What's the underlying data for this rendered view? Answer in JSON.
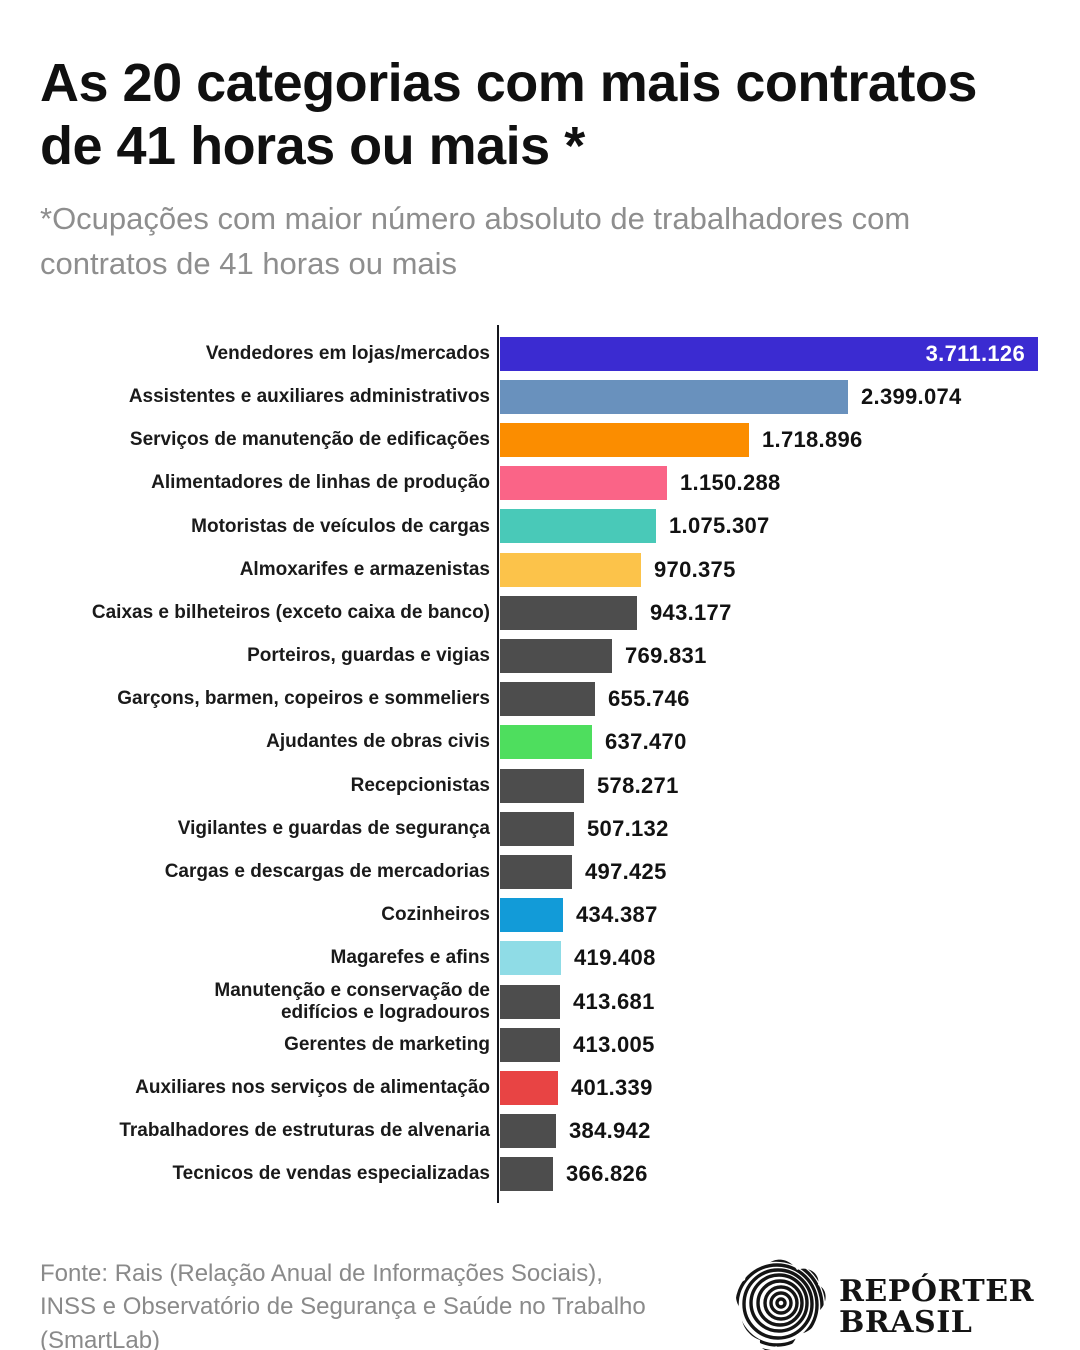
{
  "header": {
    "title": "As 20 categorias com mais contratos de 41 horas ou mais *",
    "subtitle": "*Ocupações com maior número absoluto de trabalhadores com contratos de 41 horas ou mais"
  },
  "chart_data": {
    "type": "bar",
    "orientation": "horizontal",
    "title": "As 20 categorias com mais contratos de 41 horas ou mais *",
    "xlabel": "",
    "ylabel": "",
    "xlim": [
      0,
      3711126
    ],
    "grid": false,
    "legend": false,
    "axis_color": "#15171d",
    "categories": [
      "Vendedores em lojas/mercados",
      "Assistentes e auxiliares administrativos",
      "Serviços de manutenção de edificações",
      "Alimentadores de linhas de produção",
      "Motoristas de veículos de cargas",
      "Almoxarifes e armazenistas",
      "Caixas e bilheteiros (exceto caixa de banco)",
      "Porteiros, guardas e vigias",
      "Garçons, barmen, copeiros e sommeliers",
      "Ajudantes de obras civis",
      "Recepcionistas",
      "Vigilantes e guardas de segurança",
      "Cargas e descargas de mercadorias",
      "Cozinheiros",
      "Magarefes e afins",
      "Manutenção e conservação de\nedifícios e logradouros",
      "Gerentes de marketing",
      "Auxiliares nos serviços de alimentação",
      "Trabalhadores de estruturas de alvenaria",
      "Tecnicos de vendas especializadas"
    ],
    "values": [
      3711126,
      2399074,
      1718896,
      1150288,
      1075307,
      970375,
      943177,
      769831,
      655746,
      637470,
      578271,
      507132,
      497425,
      434387,
      419408,
      413681,
      413005,
      401339,
      384942,
      366826
    ],
    "value_labels": [
      "3.711.126",
      "2.399.074",
      "1.718.896",
      "1.150.288",
      "1.075.307",
      "970.375",
      "943.177",
      "769.831",
      "655.746",
      "637.470",
      "578.271",
      "507.132",
      "497.425",
      "434.387",
      "419.408",
      "413.681",
      "413.005",
      "401.339",
      "384.942",
      "366.826"
    ],
    "bar_colors": [
      "#3b2bd1",
      "#6991bd",
      "#fb8d00",
      "#fa6487",
      "#49c9b8",
      "#fcc34a",
      "#4d4d4d",
      "#4d4d4d",
      "#4d4d4d",
      "#4ede5e",
      "#4d4d4d",
      "#4d4d4d",
      "#4d4d4d",
      "#129bd8",
      "#8fdce6",
      "#4d4d4d",
      "#4d4d4d",
      "#e84444",
      "#4d4d4d",
      "#4d4d4d"
    ],
    "value_inside_indices": [
      0
    ]
  },
  "footer": {
    "source_line1": "Fonte: Rais (Relação Anual de Informações Sociais),",
    "source_line2": "INSS e Observatório de Segurança e Saúde no Trabalho (SmartLab)",
    "logo_line1": "REPÓRTER",
    "logo_line2": "BRASIL",
    "logo_icon": "fingerprint-brazil-icon"
  }
}
